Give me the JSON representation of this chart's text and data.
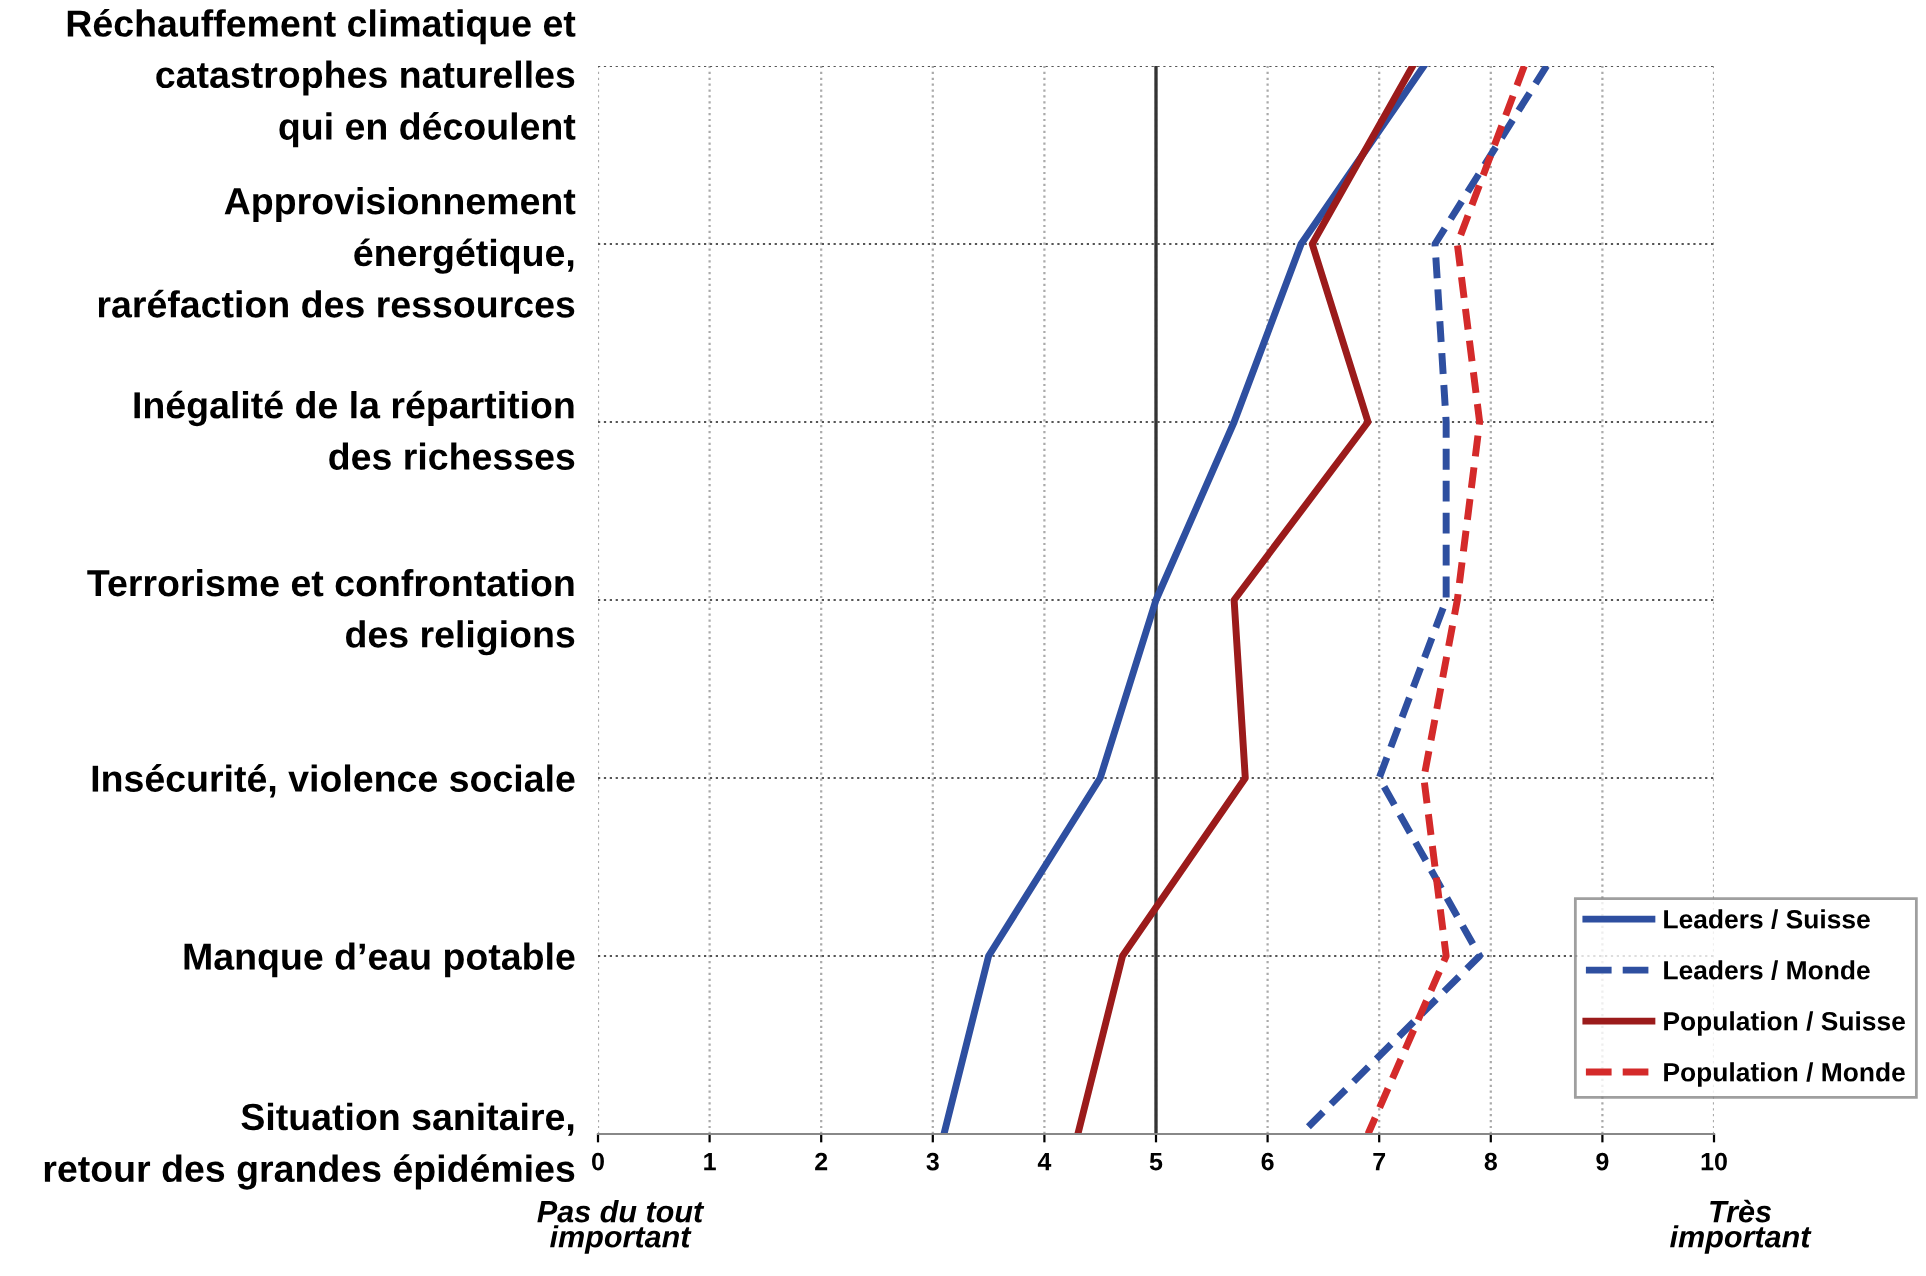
{
  "chart_data": {
    "type": "line",
    "orientation": "horizontal",
    "categories": [
      "Réchauffement climatique et\ncatastrophes naturelles\nqui en découlent",
      "Approvisionnement\nénergétique,\nraréfaction des ressources",
      "Inégalité de la répartition\ndes richesses",
      "Terrorisme et confrontation\ndes religions",
      "Insécurité, violence sociale",
      "Manque d’eau potable",
      "Situation sanitaire,\nretour des grandes épidémies"
    ],
    "series": [
      {
        "name": "Leaders / Suisse",
        "color": "#2e4fa0",
        "line_style": "solid",
        "values": [
          7.4,
          6.3,
          5.7,
          5.0,
          4.5,
          3.5,
          3.1
        ]
      },
      {
        "name": "Leaders / Monde",
        "color": "#2e4fa0",
        "line_style": "dashed",
        "values": [
          8.5,
          7.5,
          7.6,
          7.6,
          7.0,
          7.9,
          6.3
        ]
      },
      {
        "name": "Population / Suisse",
        "color": "#9b1b1b",
        "line_style": "solid",
        "values": [
          7.3,
          6.4,
          6.9,
          5.7,
          5.8,
          4.7,
          4.3
        ]
      },
      {
        "name": "Population / Monde",
        "color": "#d42a2a",
        "line_style": "dashed",
        "values": [
          8.3,
          7.7,
          7.9,
          7.7,
          7.4,
          7.6,
          6.9
        ]
      }
    ],
    "xlim": [
      0,
      10
    ],
    "xticks": [
      0,
      1,
      2,
      3,
      4,
      5,
      6,
      7,
      8,
      9,
      10
    ],
    "ref_lines": [
      {
        "axis": "x",
        "value": 5,
        "color": "#333333"
      }
    ],
    "annotations": [
      "Pas du tout\nimportant",
      "Très\nimportant"
    ],
    "grid": true,
    "legend": "bottom right"
  }
}
